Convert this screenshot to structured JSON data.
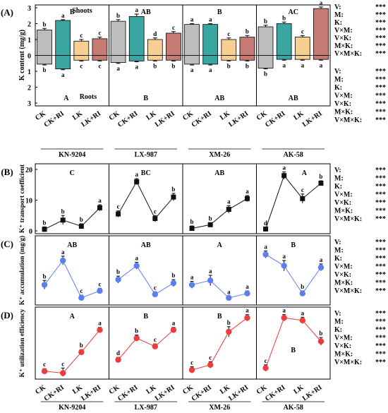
{
  "stats_labels": [
    "V:",
    "M:",
    "K:",
    "V×M:",
    "V×K:",
    "M×K:",
    "V×M×K:"
  ],
  "stats_value": "***",
  "groups": [
    "KN-9204",
    "LX-987",
    "XM-26",
    "AK-58"
  ],
  "categories": [
    "CK",
    "CK+RI",
    "LK",
    "LK+RI"
  ],
  "colors": {
    "CK": "#bdbdbd",
    "CK+RI": "#3aa6a2",
    "LK": "#f8cf92",
    "LK+RI": "#c57a74",
    "B": "#111111",
    "C": "#5b7ff0",
    "D": "#ee3b3b"
  },
  "chart_data": [
    {
      "id": "A",
      "panel_label": "(A)",
      "type": "bar",
      "ylabel": "K content (mg/g)",
      "top_label": "Shoots",
      "bottom_label": "Roots",
      "ylim": [
        -3,
        3
      ],
      "yticks": [
        "3",
        "2",
        "1",
        "0",
        "1",
        "2",
        "3"
      ],
      "group_letters_top": [
        "B",
        "AB",
        "B",
        "AC"
      ],
      "group_letters_bottom": [
        "A",
        "B",
        "AB",
        "AB"
      ],
      "series": [
        {
          "name": "Shoots",
          "values": [
            [
              1.6,
              2.2,
              0.9,
              1.05
            ],
            [
              2.15,
              2.45,
              1.0,
              1.4
            ],
            [
              1.95,
              1.95,
              1.0,
              1.15
            ],
            [
              1.8,
              2.0,
              1.15,
              2.95
            ]
          ],
          "errors": [
            [
              0.1,
              0.05,
              0.1,
              0.1
            ],
            [
              0.1,
              0.15,
              0.1,
              0.1
            ],
            [
              0.05,
              0.05,
              0.1,
              0.1
            ],
            [
              0.1,
              0.1,
              0.1,
              0.1
            ]
          ],
          "letters": [
            [
              "b",
              "a",
              "c",
              "c"
            ],
            [
              "b",
              "a",
              "d",
              "c"
            ],
            [
              "a",
              "a",
              "c",
              "b"
            ],
            [
              "b",
              "b",
              "c",
              "a"
            ]
          ]
        },
        {
          "name": "Roots",
          "values": [
            [
              -0.55,
              -0.85,
              -0.3,
              -0.3
            ],
            [
              -0.45,
              -0.35,
              -0.3,
              -0.3
            ],
            [
              -0.55,
              -0.55,
              -0.3,
              -0.3
            ],
            [
              -0.8,
              -0.25,
              -0.25,
              -0.25
            ]
          ],
          "errors": [
            [
              0.05,
              0.05,
              0.05,
              0.05
            ],
            [
              0.05,
              0.05,
              0.05,
              0.05
            ],
            [
              0.05,
              0.05,
              0.05,
              0.05
            ],
            [
              0.05,
              0.05,
              0.05,
              0.05
            ]
          ],
          "letters": [
            [
              "b",
              "a",
              "c",
              "c"
            ],
            [
              "a",
              "a",
              "b",
              "b"
            ],
            [
              "a",
              "a",
              "b",
              "b"
            ],
            [
              "b",
              "a",
              "a",
              "a"
            ]
          ]
        }
      ]
    },
    {
      "id": "B",
      "panel_label": "(B)",
      "type": "line",
      "ylabel": "K⁺ transport coefficient",
      "ylim": [
        0,
        20
      ],
      "yticks": [
        "0",
        "10",
        "20"
      ],
      "group_letters": [
        "C",
        "BC",
        "AB",
        "A"
      ],
      "values": [
        [
          0.5,
          3.5,
          1.5,
          7.5
        ],
        [
          5.5,
          16.0,
          4.0,
          11.0
        ],
        [
          0.8,
          2.0,
          7.0,
          10.5
        ],
        [
          0.6,
          18.0,
          10.5,
          15.5
        ]
      ],
      "errors": [
        [
          0.8,
          1.5,
          0.8,
          1.0
        ],
        [
          1.0,
          1.0,
          1.0,
          1.2
        ],
        [
          0.8,
          0.6,
          1.2,
          1.0
        ],
        [
          0.6,
          1.2,
          1.5,
          0.8
        ]
      ],
      "letters": [
        [
          "b",
          "b",
          "b",
          "a"
        ],
        [
          "c",
          "a",
          "c",
          "b"
        ],
        [
          "b",
          "b",
          "a",
          "a"
        ],
        [
          "d",
          "a",
          "c",
          "b"
        ]
      ]
    },
    {
      "id": "C",
      "panel_label": "(C)",
      "type": "line",
      "ylabel": "K⁺ accumulation (mg/g)",
      "ylim": [
        0,
        0.7
      ],
      "group_letters": [
        "AB",
        "AB",
        "A",
        "B"
      ],
      "values": [
        [
          0.2,
          0.48,
          0.05,
          0.13
        ],
        [
          0.26,
          0.42,
          0.09,
          0.22
        ],
        [
          0.2,
          0.25,
          0.05,
          0.1
        ],
        [
          0.55,
          0.42,
          0.1,
          0.4
        ]
      ],
      "errors": [
        [
          0.05,
          0.05,
          0.03,
          0.03
        ],
        [
          0.04,
          0.04,
          0.03,
          0.04
        ],
        [
          0.04,
          0.06,
          0.02,
          0.03
        ],
        [
          0.04,
          0.06,
          0.03,
          0.04
        ]
      ],
      "letters": [
        [
          "b",
          "a",
          "c",
          "c"
        ],
        [
          "b",
          "a",
          "c",
          "b"
        ],
        [
          "a",
          "a",
          "a",
          "a"
        ],
        [
          "a",
          "a",
          "b",
          "a"
        ]
      ]
    },
    {
      "id": "D",
      "panel_label": "(D)",
      "type": "line",
      "ylabel": "K⁺ utilization efficiency",
      "ylim": [
        0,
        1
      ],
      "group_letters": [
        "A",
        "B",
        "B",
        "B"
      ],
      "group_letter_pos": [
        "top",
        "top",
        "top",
        "bottom"
      ],
      "values": [
        [
          0.08,
          0.05,
          0.38,
          0.73
        ],
        [
          0.26,
          0.6,
          0.47,
          0.73
        ],
        [
          0.1,
          0.18,
          0.7,
          0.92
        ],
        [
          0.13,
          0.92,
          0.88,
          0.55
        ]
      ],
      "errors": [
        [
          0.04,
          0.08,
          0.04,
          0.04
        ],
        [
          0.04,
          0.05,
          0.04,
          0.04
        ],
        [
          0.05,
          0.05,
          0.08,
          0.05
        ],
        [
          0.05,
          0.05,
          0.05,
          0.06
        ]
      ],
      "letters": [
        [
          "c",
          "c",
          "b",
          "a"
        ],
        [
          "d",
          "b",
          "c",
          "a"
        ],
        [
          "c",
          "c",
          "b",
          "a"
        ],
        [
          "c",
          "a",
          "a",
          "b"
        ]
      ]
    }
  ]
}
